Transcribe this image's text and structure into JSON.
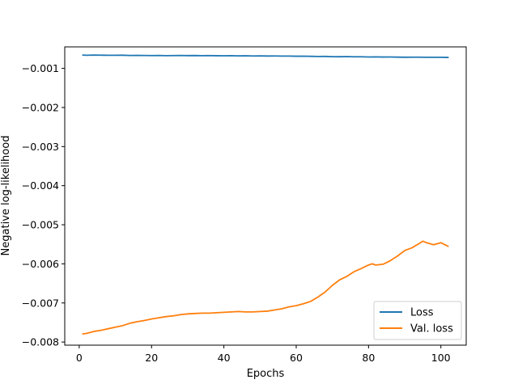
{
  "chart_data": {
    "type": "line",
    "title": "",
    "xlabel": "Epochs",
    "ylabel": "Negative log-likelihood",
    "xlim": [
      -4,
      107
    ],
    "ylim": [
      -0.00808,
      -0.00045
    ],
    "x_ticks": [
      0,
      20,
      40,
      60,
      80,
      100
    ],
    "y_ticks": [
      -0.001,
      -0.002,
      -0.003,
      -0.004,
      -0.005,
      -0.006,
      -0.007,
      -0.008
    ],
    "x_tick_labels": [
      "0",
      "20",
      "40",
      "60",
      "80",
      "100"
    ],
    "y_tick_labels": [
      "−0.001",
      "−0.002",
      "−0.003",
      "−0.004",
      "−0.005",
      "−0.006",
      "−0.007",
      "−0.008"
    ],
    "grid": false,
    "legend_position": "lower-right",
    "series": [
      {
        "name": "Loss",
        "color": "#1f77b4",
        "x": [
          1,
          2,
          4,
          6,
          8,
          10,
          12,
          14,
          16,
          18,
          20,
          22,
          24,
          26,
          28,
          30,
          32,
          34,
          36,
          38,
          40,
          42,
          44,
          46,
          48,
          50,
          52,
          54,
          56,
          58,
          60,
          62,
          64,
          66,
          68,
          70,
          72,
          74,
          76,
          78,
          80,
          82,
          84,
          86,
          88,
          90,
          92,
          94,
          96,
          98,
          100,
          102
        ],
        "values": [
          -0.00066,
          -0.000665,
          -0.00066,
          -0.000662,
          -0.000665,
          -0.000664,
          -0.000663,
          -0.00067,
          -0.000668,
          -0.00067,
          -0.000672,
          -0.000669,
          -0.000675,
          -0.000672,
          -0.00067,
          -0.000674,
          -0.000671,
          -0.000675,
          -0.000673,
          -0.000676,
          -0.000678,
          -0.000675,
          -0.00068,
          -0.000678,
          -0.000682,
          -0.00068,
          -0.000684,
          -0.000683,
          -0.000686,
          -0.000685,
          -0.000689,
          -0.000688,
          -0.000692,
          -0.000696,
          -0.000694,
          -0.0007,
          -0.000702,
          -0.000698,
          -0.000703,
          -0.000704,
          -0.000708,
          -0.000706,
          -0.00071,
          -0.000709,
          -0.000712,
          -0.000715,
          -0.000713,
          -0.000714,
          -0.000716,
          -0.000717,
          -0.000716,
          -0.00072
        ]
      },
      {
        "name": "Val. loss",
        "color": "#ff7f0e",
        "x": [
          1,
          2,
          4,
          6,
          8,
          10,
          12,
          14,
          16,
          18,
          20,
          22,
          24,
          26,
          28,
          30,
          32,
          34,
          36,
          38,
          40,
          42,
          44,
          46,
          48,
          50,
          52,
          54,
          56,
          58,
          60,
          62,
          64,
          66,
          68,
          70,
          72,
          74,
          76,
          78,
          80,
          81,
          82,
          84,
          86,
          88,
          90,
          92,
          94,
          95,
          96,
          98,
          100,
          102
        ],
        "values": [
          -0.00779,
          -0.00778,
          -0.00773,
          -0.0077,
          -0.00766,
          -0.00762,
          -0.00758,
          -0.00752,
          -0.00748,
          -0.00745,
          -0.00741,
          -0.00738,
          -0.00735,
          -0.00733,
          -0.0073,
          -0.00728,
          -0.00727,
          -0.00726,
          -0.00726,
          -0.00725,
          -0.00724,
          -0.00723,
          -0.00722,
          -0.00723,
          -0.00723,
          -0.00722,
          -0.00721,
          -0.00718,
          -0.00715,
          -0.0071,
          -0.00707,
          -0.00702,
          -0.00696,
          -0.00685,
          -0.00672,
          -0.00655,
          -0.00641,
          -0.00632,
          -0.0062,
          -0.00612,
          -0.00603,
          -0.006,
          -0.00603,
          -0.00601,
          -0.00592,
          -0.0058,
          -0.00566,
          -0.00559,
          -0.00548,
          -0.00542,
          -0.00546,
          -0.00551,
          -0.00546,
          -0.00555
        ]
      }
    ]
  }
}
